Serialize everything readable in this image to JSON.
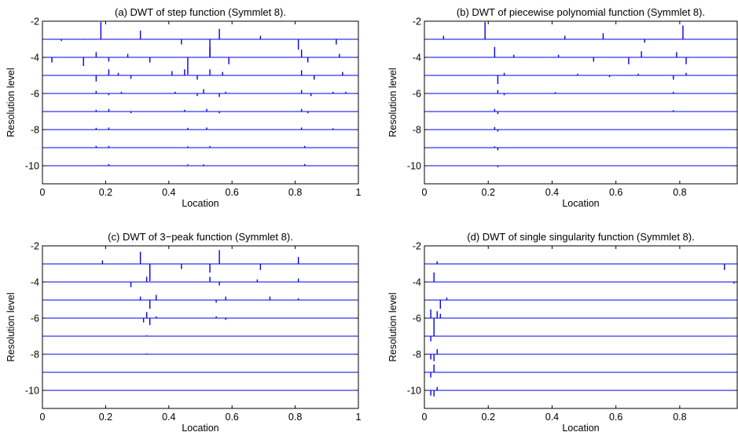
{
  "colors": {
    "trace": "#0000ee",
    "axes": "#000000",
    "background": "#ffffff"
  },
  "chart_data": [
    {
      "type": "line",
      "title": "(a) DWT of step function (Symmlet 8).",
      "xlabel": "Location",
      "ylabel": "Resolution level",
      "xlim": [
        0,
        1
      ],
      "ylim": [
        -11,
        -2
      ],
      "xticks": [
        "0",
        "0.2",
        "0.4",
        "0.6",
        "0.8",
        "1"
      ],
      "xtick_values": [
        0,
        0.2,
        0.4,
        0.6,
        0.8,
        1
      ],
      "yticks": [
        "-2",
        "-4",
        "-6",
        "-8",
        "-10"
      ],
      "ytick_values": [
        -2,
        -4,
        -6,
        -8,
        -10
      ],
      "levels": [
        -3,
        -4,
        -5,
        -6,
        -7,
        -8,
        -9,
        -10
      ],
      "spikes": [
        [
          -3,
          0.13,
          0.03
        ],
        [
          -3,
          0.185,
          1.0
        ],
        [
          -3,
          0.31,
          0.5
        ],
        [
          -3,
          0.44,
          -0.3
        ],
        [
          -3,
          0.53,
          -1.0
        ],
        [
          -3,
          0.56,
          0.6
        ],
        [
          -3,
          0.69,
          0.2
        ],
        [
          -3,
          0.81,
          -0.6
        ],
        [
          -3,
          0.93,
          -0.3
        ],
        [
          -3,
          0.06,
          -0.1
        ],
        [
          -4,
          0.03,
          -0.3
        ],
        [
          -4,
          0.13,
          -0.5
        ],
        [
          -4,
          0.17,
          0.3
        ],
        [
          -4,
          0.21,
          -0.25
        ],
        [
          -4,
          0.27,
          0.2
        ],
        [
          -4,
          0.34,
          -0.3
        ],
        [
          -4,
          0.46,
          -1.0
        ],
        [
          -4,
          0.53,
          0.6
        ],
        [
          -4,
          0.59,
          -0.4
        ],
        [
          -4,
          0.82,
          0.45
        ],
        [
          -4,
          0.84,
          -0.3
        ],
        [
          -4,
          0.94,
          0.2
        ],
        [
          -5,
          0.17,
          -0.35
        ],
        [
          -5,
          0.21,
          0.35
        ],
        [
          -5,
          0.24,
          0.15
        ],
        [
          -5,
          0.28,
          -0.2
        ],
        [
          -5,
          0.41,
          0.25
        ],
        [
          -5,
          0.45,
          0.35
        ],
        [
          -5,
          0.49,
          -0.25
        ],
        [
          -5,
          0.53,
          0.35
        ],
        [
          -5,
          0.57,
          0.2
        ],
        [
          -5,
          0.82,
          0.3
        ],
        [
          -5,
          0.86,
          -0.25
        ],
        [
          -5,
          0.95,
          0.2
        ],
        [
          -6,
          0.17,
          0.15
        ],
        [
          -6,
          0.21,
          -0.1
        ],
        [
          -6,
          0.25,
          0.1
        ],
        [
          -6,
          0.42,
          0.1
        ],
        [
          -6,
          0.49,
          -0.15
        ],
        [
          -6,
          0.51,
          0.25
        ],
        [
          -6,
          0.56,
          -0.2
        ],
        [
          -6,
          0.58,
          0.1
        ],
        [
          -6,
          0.82,
          0.2
        ],
        [
          -6,
          0.85,
          -0.15
        ],
        [
          -6,
          0.92,
          0.1
        ],
        [
          -6,
          0.96,
          0.1
        ],
        [
          -7,
          0.17,
          0.1
        ],
        [
          -7,
          0.21,
          0.15
        ],
        [
          -7,
          0.28,
          -0.1
        ],
        [
          -7,
          0.45,
          0.1
        ],
        [
          -7,
          0.52,
          0.15
        ],
        [
          -7,
          0.56,
          -0.1
        ],
        [
          -7,
          0.82,
          0.15
        ],
        [
          -7,
          0.84,
          -0.1
        ],
        [
          -8,
          0.17,
          0.1
        ],
        [
          -8,
          0.21,
          0.12
        ],
        [
          -8,
          0.46,
          0.1
        ],
        [
          -8,
          0.52,
          0.12
        ],
        [
          -8,
          0.82,
          0.12
        ],
        [
          -8,
          0.92,
          0.08
        ],
        [
          -9,
          0.17,
          0.1
        ],
        [
          -9,
          0.21,
          0.1
        ],
        [
          -9,
          0.46,
          0.08
        ],
        [
          -9,
          0.53,
          0.1
        ],
        [
          -9,
          0.83,
          0.1
        ],
        [
          -10,
          0.21,
          0.1
        ],
        [
          -10,
          0.46,
          0.08
        ],
        [
          -10,
          0.51,
          0.08
        ],
        [
          -10,
          0.83,
          0.1
        ]
      ]
    },
    {
      "type": "line",
      "title": "(b) DWT of piecewise polynomial function (Symmlet 8).",
      "xlabel": "Location",
      "ylabel": "Resolution level",
      "xlim": [
        0,
        0.98
      ],
      "ylim": [
        -11,
        -2
      ],
      "xticks": [
        "0",
        "0.2",
        "0.4",
        "0.6",
        "0.8"
      ],
      "xtick_values": [
        0,
        0.2,
        0.4,
        0.6,
        0.8
      ],
      "yticks": [
        "-2",
        "-4",
        "-6",
        "-8",
        "-10"
      ],
      "ytick_values": [
        -2,
        -4,
        -6,
        -8,
        -10
      ],
      "levels": [
        -3,
        -4,
        -5,
        -6,
        -7,
        -8,
        -9,
        -10
      ],
      "spikes": [
        [
          -3,
          0.06,
          0.2
        ],
        [
          -3,
          0.19,
          1.0
        ],
        [
          -3,
          0.44,
          0.2
        ],
        [
          -3,
          0.56,
          0.35
        ],
        [
          -3,
          0.69,
          -0.2
        ],
        [
          -3,
          0.81,
          0.8
        ],
        [
          -4,
          0.22,
          0.6
        ],
        [
          -4,
          0.28,
          0.15
        ],
        [
          -4,
          0.42,
          0.15
        ],
        [
          -4,
          0.53,
          -0.25
        ],
        [
          -4,
          0.64,
          -0.4
        ],
        [
          -4,
          0.68,
          0.35
        ],
        [
          -4,
          0.79,
          0.3
        ],
        [
          -4,
          0.82,
          -0.4
        ],
        [
          -5,
          0.23,
          -0.5
        ],
        [
          -5,
          0.25,
          0.15
        ],
        [
          -5,
          0.48,
          0.1
        ],
        [
          -5,
          0.58,
          -0.1
        ],
        [
          -5,
          0.67,
          0.1
        ],
        [
          -5,
          0.78,
          -0.25
        ],
        [
          -5,
          0.82,
          0.15
        ],
        [
          -6,
          0.23,
          0.2
        ],
        [
          -6,
          0.25,
          -0.1
        ],
        [
          -6,
          0.41,
          0.08
        ],
        [
          -6,
          0.78,
          0.1
        ],
        [
          -7,
          0.22,
          0.15
        ],
        [
          -7,
          0.23,
          -0.15
        ],
        [
          -7,
          0.78,
          0.08
        ],
        [
          -8,
          0.22,
          0.15
        ],
        [
          -8,
          0.23,
          -0.12
        ],
        [
          -9,
          0.23,
          -0.15
        ],
        [
          -9,
          0.22,
          0.08
        ],
        [
          -10,
          0.23,
          -0.08
        ]
      ]
    },
    {
      "type": "line",
      "title": "(c) DWT of 3−peak function (Symmlet 8).",
      "xlabel": "Location",
      "ylabel": "Resolution level",
      "xlim": [
        0,
        1
      ],
      "ylim": [
        -11,
        -2
      ],
      "xticks": [
        "0",
        "0.2",
        "0.4",
        "0.6",
        "0.8",
        "1"
      ],
      "xtick_values": [
        0,
        0.2,
        0.4,
        0.6,
        0.8,
        1
      ],
      "yticks": [
        "-2",
        "-4",
        "-6",
        "-8",
        "-10"
      ],
      "ytick_values": [
        -2,
        -4,
        -6,
        -8,
        -10
      ],
      "levels": [
        -3,
        -4,
        -5,
        -6,
        -7,
        -8,
        -9,
        -10
      ],
      "spikes": [
        [
          -3,
          0.19,
          0.2
        ],
        [
          -3,
          0.31,
          0.7
        ],
        [
          -3,
          0.34,
          -1.0
        ],
        [
          -3,
          0.44,
          -0.3
        ],
        [
          -3,
          0.53,
          -0.5
        ],
        [
          -3,
          0.56,
          0.8
        ],
        [
          -3,
          0.69,
          -0.35
        ],
        [
          -3,
          0.81,
          0.4
        ],
        [
          -4,
          0.28,
          -0.3
        ],
        [
          -4,
          0.33,
          0.3
        ],
        [
          -4,
          0.53,
          0.3
        ],
        [
          -4,
          0.56,
          -0.2
        ],
        [
          -4,
          0.68,
          0.15
        ],
        [
          -4,
          0.81,
          0.2
        ],
        [
          -5,
          0.31,
          0.2
        ],
        [
          -5,
          0.34,
          -0.5
        ],
        [
          -5,
          0.36,
          0.3
        ],
        [
          -5,
          0.55,
          -0.15
        ],
        [
          -5,
          0.58,
          0.2
        ],
        [
          -5,
          0.72,
          0.2
        ],
        [
          -5,
          0.81,
          0.1
        ],
        [
          -6,
          0.32,
          -0.25
        ],
        [
          -6,
          0.33,
          0.35
        ],
        [
          -6,
          0.34,
          -0.4
        ],
        [
          -6,
          0.36,
          0.1
        ],
        [
          -6,
          0.55,
          0.1
        ],
        [
          -6,
          0.58,
          -0.1
        ],
        [
          -7,
          0.33,
          0.05
        ],
        [
          -8,
          0.33,
          0.04
        ]
      ]
    },
    {
      "type": "line",
      "title": "(d) DWT of single singularity function (Symmlet 8).",
      "xlabel": "Location",
      "ylabel": "Resolution level",
      "xlim": [
        0,
        0.98
      ],
      "ylim": [
        -11,
        -2
      ],
      "xticks": [
        "0",
        "0.2",
        "0.4",
        "0.6",
        "0.8"
      ],
      "xtick_values": [
        0,
        0.2,
        0.4,
        0.6,
        0.8
      ],
      "yticks": [
        "-2",
        "-4",
        "-6",
        "-8",
        "-10"
      ],
      "ytick_values": [
        -2,
        -4,
        -6,
        -8,
        -10
      ],
      "levels": [
        -3,
        -4,
        -5,
        -6,
        -7,
        -8,
        -9,
        -10
      ],
      "spikes": [
        [
          -3,
          0.04,
          0.15
        ],
        [
          -3,
          0.94,
          -0.35
        ],
        [
          -4,
          0.03,
          0.55
        ],
        [
          -4,
          0.97,
          -0.1
        ],
        [
          -5,
          0.05,
          -0.5
        ],
        [
          -5,
          0.07,
          0.15
        ],
        [
          -6,
          0.02,
          0.5
        ],
        [
          -6,
          0.03,
          -0.7
        ],
        [
          -6,
          0.04,
          0.4
        ],
        [
          -6,
          0.05,
          0.25
        ],
        [
          -7,
          0.02,
          -0.3
        ],
        [
          -7,
          0.03,
          0.35
        ],
        [
          -8,
          0.02,
          -0.3
        ],
        [
          -8,
          0.03,
          -0.4
        ],
        [
          -8,
          0.04,
          0.3
        ],
        [
          -9,
          0.02,
          -0.3
        ],
        [
          -9,
          0.03,
          0.45
        ],
        [
          -10,
          0.02,
          -0.3
        ],
        [
          -10,
          0.03,
          -0.35
        ],
        [
          -10,
          0.04,
          0.2
        ]
      ]
    }
  ]
}
